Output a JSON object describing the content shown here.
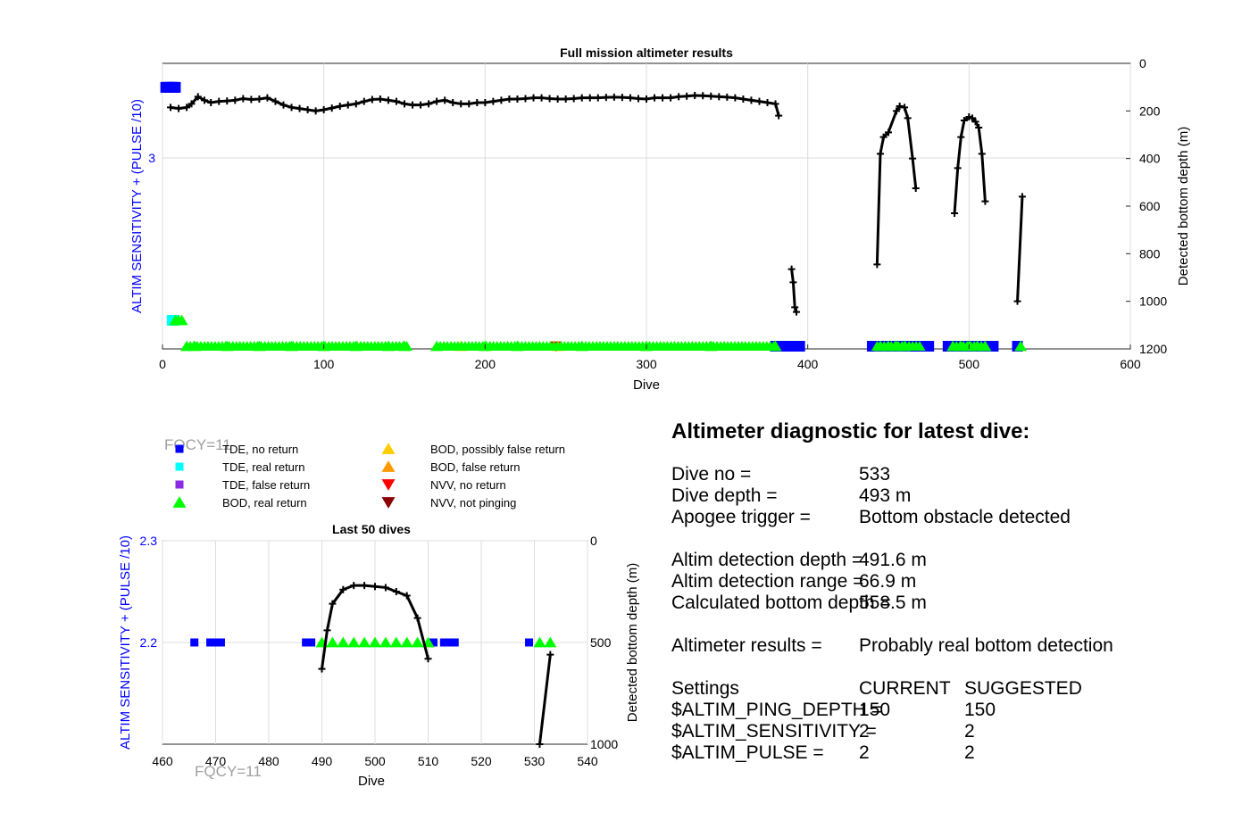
{
  "chart_data": [
    {
      "type": "scatter",
      "title": "Full mission altimeter results",
      "xlabel": "Dive",
      "ylabel_left": "ALTIM SENSITIVITY + (PULSE /10)",
      "ylabel_right": "Detected bottom depth (m)",
      "xlim": [
        0,
        600
      ],
      "ylim_right": [
        0,
        1200
      ],
      "right_axis_reversed": true,
      "x_ticks": [
        "0",
        "100",
        "200",
        "300",
        "400",
        "500",
        "600"
      ],
      "y_ticks_left": [
        "3"
      ],
      "y_ticks_right": [
        "0",
        "200",
        "400",
        "600",
        "800",
        "1000",
        "1200"
      ],
      "grid": true,
      "series": [
        {
          "name": "Detected bottom depth",
          "segments": [
            {
              "x": [
                5,
                10,
                15,
                18,
                22,
                26,
                30,
                35,
                40,
                45,
                50,
                55,
                60,
                65,
                70,
                75,
                80,
                85,
                90,
                95,
                100,
                105,
                110,
                115,
                120,
                125,
                130,
                135,
                140,
                145,
                150,
                155,
                160,
                165,
                170,
                175,
                180,
                185,
                190,
                195,
                200,
                205,
                210,
                215,
                220,
                225,
                230,
                235,
                240,
                245,
                250,
                255,
                260,
                265,
                270,
                275,
                280,
                285,
                290,
                295,
                300,
                305,
                310,
                315,
                320,
                325,
                330,
                335,
                340,
                345,
                350,
                355,
                360,
                365,
                370,
                375,
                380,
                382
              ],
              "y": [
                185,
                190,
                185,
                170,
                140,
                155,
                165,
                160,
                158,
                155,
                148,
                152,
                150,
                145,
                160,
                175,
                185,
                190,
                195,
                200,
                195,
                188,
                180,
                175,
                170,
                160,
                152,
                150,
                155,
                160,
                170,
                175,
                175,
                170,
                160,
                155,
                165,
                170,
                170,
                165,
                165,
                160,
                155,
                150,
                150,
                148,
                145,
                145,
                148,
                150,
                150,
                148,
                145,
                145,
                145,
                143,
                142,
                143,
                145,
                148,
                150,
                145,
                145,
                145,
                140,
                138,
                135,
                136,
                138,
                140,
                142,
                145,
                150,
                155,
                160,
                165,
                170,
                220
              ]
            },
            {
              "x": [
                390,
                391,
                392,
                393
              ],
              "y": [
                865,
                920,
                1025,
                1045
              ]
            },
            {
              "x": [
                443,
                445,
                447,
                450,
                455,
                457,
                460,
                462,
                465,
                467
              ],
              "y": [
                845,
                380,
                310,
                290,
                200,
                180,
                185,
                230,
                400,
                525
              ]
            },
            {
              "x": [
                491,
                493,
                495,
                497,
                500,
                502,
                504,
                506,
                508,
                510
              ],
              "y": [
                630,
                440,
                310,
                240,
                225,
                230,
                245,
                270,
                380,
                580
              ]
            },
            {
              "x": [
                530,
                533
              ],
              "y": [
                1000,
                560
              ]
            }
          ]
        },
        {
          "name": "TDE, no return",
          "marker": "square",
          "color": "#0000ff",
          "x": [
            2,
            3,
            4,
            5,
            6,
            7,
            8,
            380,
            385,
            390,
            395,
            440,
            445,
            450,
            455,
            460,
            465,
            470,
            475,
            487,
            490,
            495,
            500,
            505,
            510,
            515,
            530
          ],
          "y_left": [
            3.3,
            3.3,
            3.3,
            3.3,
            3.3,
            3.3,
            3.3,
            2.2,
            2.2,
            2.2,
            2.2,
            2.2,
            2.2,
            2.2,
            2.2,
            2.2,
            2.2,
            2.2,
            2.2,
            2.2,
            2.2,
            2.2,
            2.2,
            2.2,
            2.2,
            2.2,
            2.2
          ]
        },
        {
          "name": "TDE, real return",
          "marker": "square",
          "color": "#00ffff",
          "x": [
            6,
            7
          ],
          "y_left": [
            2.31,
            2.31
          ]
        },
        {
          "name": "BOD, real return",
          "marker": "triangle-up",
          "color": "#00ff00",
          "x": [
            8,
            10,
            12,
            15,
            20,
            40,
            60,
            80,
            100,
            120,
            140,
            150,
            170,
            200,
            220,
            260,
            300,
            340,
            380,
            445,
            450,
            455,
            460,
            490,
            495,
            500,
            505,
            510,
            532
          ],
          "y_left": [
            2.31,
            2.31,
            2.31,
            2.2,
            2.2,
            2.2,
            2.2,
            2.2,
            2.2,
            2.2,
            2.2,
            2.2,
            2.2,
            2.2,
            2.2,
            2.2,
            2.2,
            2.2,
            2.2,
            2.2,
            2.2,
            2.2,
            2.2,
            2.2,
            2.2,
            2.2,
            2.2,
            2.2,
            2.2
          ]
        },
        {
          "name": "NVV, no return",
          "marker": "triangle-down",
          "color": "#ff0000",
          "x": [
            244
          ],
          "y_left": [
            2.2
          ]
        },
        {
          "name": "BOD, possibly false return",
          "marker": "triangle-up",
          "color": "#ffcc00",
          "x": [
            185,
            245
          ],
          "y_left": [
            2.2,
            2.2
          ]
        }
      ]
    },
    {
      "type": "scatter",
      "title": "Last 50 dives",
      "xlabel": "Dive",
      "ylabel_left": "ALTIM SENSITIVITY + (PULSE /10)",
      "ylabel_right": "Detected bottom depth (m)",
      "xlim": [
        460,
        540
      ],
      "ylim_left": [
        2.1,
        2.3
      ],
      "ylim_right": [
        0,
        1000
      ],
      "right_axis_reversed": true,
      "x_ticks": [
        "460",
        "470",
        "480",
        "490",
        "500",
        "510",
        "520",
        "530",
        "540"
      ],
      "y_ticks_left": [
        "2.2",
        "2.3"
      ],
      "y_ticks_right": [
        "0",
        "500",
        "1000"
      ],
      "grid": true,
      "annotation_overlay": "FQCY=11",
      "series": [
        {
          "name": "Detected bottom depth",
          "segments": [
            {
              "x": [
                490,
                491,
                492,
                494,
                496,
                498,
                500,
                502,
                504,
                506,
                508,
                510
              ],
              "y": [
                630,
                440,
                310,
                240,
                220,
                220,
                225,
                230,
                250,
                270,
                380,
                580
              ]
            },
            {
              "x": [
                531,
                533
              ],
              "y": [
                1000,
                560
              ]
            }
          ]
        },
        {
          "name": "TDE, no return",
          "marker": "square",
          "color": "#0000ff",
          "x": [
            466,
            469,
            470,
            471,
            487,
            488,
            511,
            513,
            514,
            515,
            529
          ],
          "y_left": [
            2.2,
            2.2,
            2.2,
            2.2,
            2.2,
            2.2,
            2.2,
            2.2,
            2.2,
            2.2,
            2.2
          ]
        },
        {
          "name": "BOD, real return",
          "marker": "triangle-up",
          "color": "#00ff00",
          "x": [
            490,
            492,
            494,
            496,
            498,
            500,
            502,
            504,
            506,
            508,
            510,
            531,
            533
          ],
          "y_left": [
            2.2,
            2.2,
            2.2,
            2.2,
            2.2,
            2.2,
            2.2,
            2.2,
            2.2,
            2.2,
            2.2,
            2.2,
            2.2
          ]
        }
      ]
    }
  ],
  "legend": {
    "overlay_text": "FQCY=11",
    "items": [
      {
        "label": "TDE, no return",
        "marker": "square",
        "color": "#0000ff"
      },
      {
        "label": "TDE, real return",
        "marker": "square",
        "color": "#00ffff"
      },
      {
        "label": "TDE, false return",
        "marker": "square",
        "color": "#8a2be2"
      },
      {
        "label": "BOD, real return",
        "marker": "triangle-up",
        "color": "#00ff00"
      },
      {
        "label": "BOD, possibly false return",
        "marker": "triangle-up",
        "color": "#ffcc00"
      },
      {
        "label": "BOD, false return",
        "marker": "triangle-up",
        "color": "#ff9900"
      },
      {
        "label": "NVV, no return",
        "marker": "triangle-down",
        "color": "#ff0000"
      },
      {
        "label": "NVV, not pinging",
        "marker": "triangle-down",
        "color": "#8b0000"
      }
    ]
  },
  "diagnostic": {
    "heading": "Altimeter diagnostic for latest dive:",
    "dive_no_label": "Dive no =",
    "dive_no": "533",
    "dive_depth_label": "Dive depth =",
    "dive_depth": "493 m",
    "apogee_label": "Apogee trigger =",
    "apogee": "Bottom obstacle detected",
    "altim_depth_label": "Altim detection depth =",
    "altim_depth": "491.6 m",
    "altim_range_label": "Altim detection range =",
    "altim_range": "66.9 m",
    "calc_depth_label": "Calculated bottom depth =",
    "calc_depth": "558.5 m",
    "results_label": "Altimeter results =",
    "results": "Probably real bottom detection",
    "settings_label": "Settings",
    "current_label": "CURRENT",
    "suggested_label": "SUGGESTED",
    "ping_depth_label": "$ALTIM_PING_DEPTH =",
    "ping_depth_current": "150",
    "ping_depth_suggested": "150",
    "sensitivity_label": "$ALTIM_SENSITIVITY =",
    "sensitivity_current": "2",
    "sensitivity_suggested": "2",
    "pulse_label": "$ALTIM_PULSE =",
    "pulse_current": "2",
    "pulse_suggested": "2"
  },
  "colors": {
    "depth_line": "#000000",
    "left_axis": "#0000ff",
    "grid": "#dcdcdc",
    "overlay_text": "#a0a0a0"
  }
}
